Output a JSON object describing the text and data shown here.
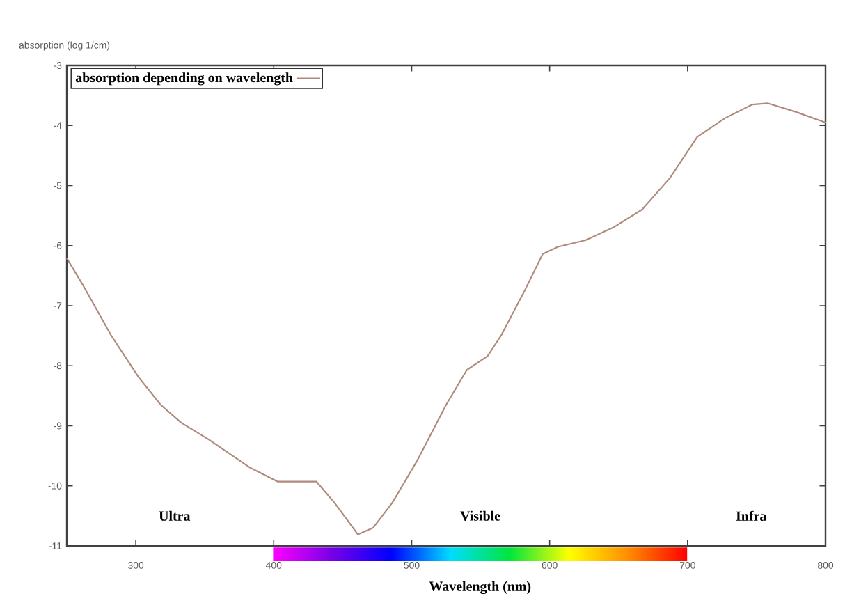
{
  "chart_data": {
    "type": "line",
    "xlabel": "Wavelength (nm)",
    "ylabel": "absorption (log 1/cm)",
    "x": [
      250,
      262,
      282,
      302,
      318,
      333,
      353,
      383,
      403,
      431,
      444,
      461,
      472,
      486,
      504,
      525,
      540,
      555,
      565,
      581,
      595,
      606,
      626,
      646,
      667,
      687,
      707,
      727,
      747,
      758,
      778,
      800
    ],
    "series": [
      {
        "name": "absorption depending on wavelength",
        "color": "#b08a7c",
        "values": [
          -6.21,
          -6.67,
          -7.49,
          -8.19,
          -8.65,
          -8.95,
          -9.23,
          -9.7,
          -9.93,
          -9.93,
          -10.28,
          -10.81,
          -10.7,
          -10.28,
          -9.58,
          -8.65,
          -8.07,
          -7.84,
          -7.49,
          -6.79,
          -6.14,
          -6.02,
          -5.91,
          -5.7,
          -5.4,
          -4.88,
          -4.19,
          -3.88,
          -3.65,
          -3.63,
          -3.77,
          -3.95
        ]
      }
    ],
    "xlim": [
      250,
      800
    ],
    "ylim": [
      -11,
      -3
    ],
    "xticks": [
      300,
      400,
      500,
      600,
      700,
      800
    ],
    "yticks": [
      -11,
      -10,
      -9,
      -8,
      -7,
      -6,
      -5,
      -4,
      -3
    ],
    "annotations": [
      "Ultra",
      "Visible",
      "Infra"
    ],
    "legend": "top left",
    "grid": false,
    "line_style": "solid"
  }
}
